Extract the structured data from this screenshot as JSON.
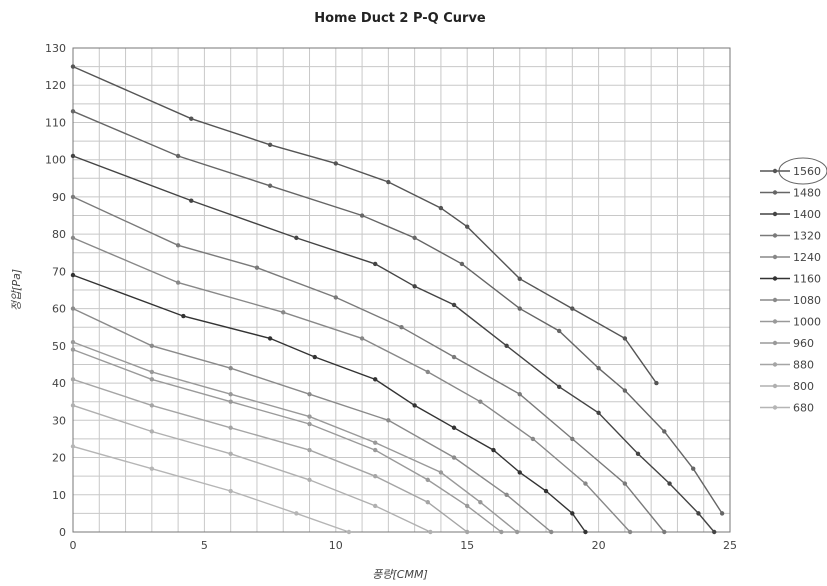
{
  "chart_data": {
    "type": "line",
    "title": "Home Duct 2 P-Q Curve",
    "xlabel": "풍량[CMM]",
    "ylabel": "정압[Pa]",
    "xlim": [
      0,
      25
    ],
    "ylim": [
      0,
      130
    ],
    "xticks": [
      0,
      5,
      10,
      15,
      20,
      25
    ],
    "yticks": [
      0,
      10,
      20,
      30,
      40,
      50,
      60,
      70,
      80,
      90,
      100,
      110,
      120,
      130
    ],
    "grid": true,
    "legend_position": "right",
    "series": [
      {
        "name": "1560",
        "color": "#555555",
        "x": [
          0,
          4.5,
          7.5,
          10,
          12,
          14,
          15,
          17,
          19,
          21,
          22.2
        ],
        "y": [
          125,
          111,
          104,
          99,
          94,
          87,
          82,
          68,
          60,
          52,
          40
        ]
      },
      {
        "name": "1480",
        "color": "#666666",
        "x": [
          0,
          4,
          7.5,
          11,
          13,
          14.8,
          17,
          18.5,
          20,
          21,
          22.5,
          23.6,
          24.7
        ],
        "y": [
          113,
          101,
          93,
          85,
          79,
          72,
          60,
          54,
          44,
          38,
          27,
          17,
          5
        ]
      },
      {
        "name": "1400",
        "color": "#444444",
        "x": [
          0,
          4.5,
          8.5,
          11.5,
          13,
          14.5,
          16.5,
          18.5,
          20,
          21.5,
          22.7,
          23.8,
          24.4
        ],
        "y": [
          101,
          89,
          79,
          72,
          66,
          61,
          50,
          39,
          32,
          21,
          13,
          5,
          0
        ]
      },
      {
        "name": "1320",
        "color": "#7a7a7a",
        "x": [
          0,
          4,
          7,
          10,
          12.5,
          14.5,
          17,
          19,
          21,
          22.5
        ],
        "y": [
          90,
          77,
          71,
          63,
          55,
          47,
          37,
          25,
          13,
          0
        ]
      },
      {
        "name": "1240",
        "color": "#888888",
        "x": [
          0,
          4,
          8,
          11,
          13.5,
          15.5,
          17.5,
          19.5,
          21.2
        ],
        "y": [
          79,
          67,
          59,
          52,
          43,
          35,
          25,
          13,
          0
        ]
      },
      {
        "name": "1160",
        "color": "#333333",
        "x": [
          0,
          4.2,
          7.5,
          9.2,
          11.5,
          13,
          14.5,
          16,
          17,
          18,
          19,
          19.5
        ],
        "y": [
          69,
          58,
          52,
          47,
          41,
          34,
          28,
          22,
          16,
          11,
          5,
          0
        ]
      },
      {
        "name": "1080",
        "color": "#8a8a8a",
        "x": [
          0,
          3,
          6,
          9,
          12,
          14.5,
          16.5,
          18.2
        ],
        "y": [
          60,
          50,
          44,
          37,
          30,
          20,
          10,
          0
        ]
      },
      {
        "name": "1000",
        "color": "#999999",
        "x": [
          0,
          3,
          6,
          9,
          11.5,
          14,
          15.5,
          16.9
        ],
        "y": [
          51,
          43,
          37,
          31,
          24,
          16,
          8,
          0
        ]
      },
      {
        "name": "960",
        "color": "#9a9a9a",
        "x": [
          0,
          3,
          6,
          9,
          11.5,
          13.5,
          15,
          16.3
        ],
        "y": [
          49,
          41,
          35,
          29,
          22,
          14,
          7,
          0
        ]
      },
      {
        "name": "880",
        "color": "#a5a5a5",
        "x": [
          0,
          3,
          6,
          9,
          11.5,
          13.5,
          15
        ],
        "y": [
          41,
          34,
          28,
          22,
          15,
          8,
          0
        ]
      },
      {
        "name": "800",
        "color": "#b0b0b0",
        "x": [
          0,
          3,
          6,
          9,
          11.5,
          13.6
        ],
        "y": [
          34,
          27,
          21,
          14,
          7,
          0
        ]
      },
      {
        "name": "680",
        "color": "#b5b5b5",
        "x": [
          0,
          3,
          6,
          8.5,
          10.5
        ],
        "y": [
          23,
          17,
          11,
          5,
          0
        ]
      }
    ]
  }
}
